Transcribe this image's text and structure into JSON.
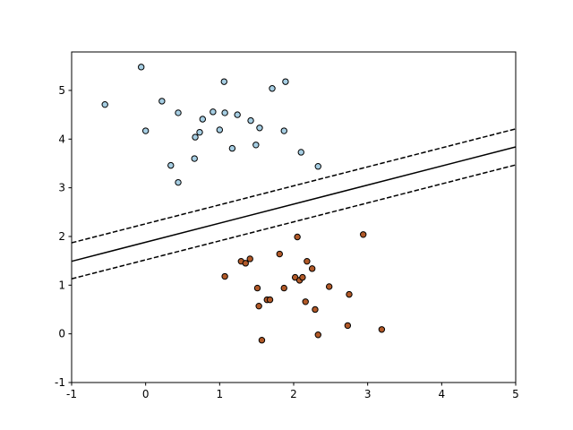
{
  "chart_data": {
    "type": "scatter",
    "xlim": [
      -1,
      5
    ],
    "ylim": [
      -1,
      5.79
    ],
    "xticks": [
      -1,
      0,
      1,
      2,
      3,
      4,
      5
    ],
    "yticks": [
      -1,
      0,
      1,
      2,
      3,
      4,
      5
    ],
    "series": [
      {
        "color": "#a6cee3",
        "x": [
          -0.55,
          -0.06,
          0.0,
          0.22,
          0.44,
          0.34,
          0.44,
          0.67,
          0.73,
          0.77,
          0.66,
          0.91,
          1.0,
          1.06,
          1.07,
          1.17,
          1.24,
          1.42,
          1.49,
          1.54,
          1.71,
          1.87,
          1.89,
          2.1,
          2.33
        ],
        "values": [
          4.71,
          5.48,
          4.17,
          4.78,
          4.54,
          3.46,
          3.11,
          4.04,
          4.14,
          4.41,
          3.6,
          4.56,
          4.19,
          5.18,
          4.54,
          3.81,
          4.5,
          4.38,
          3.88,
          4.23,
          5.04,
          4.17,
          5.18,
          3.73,
          3.44
        ]
      },
      {
        "color": "#b15928",
        "x": [
          1.07,
          1.29,
          1.35,
          1.41,
          1.51,
          1.53,
          1.57,
          1.64,
          1.68,
          1.81,
          1.87,
          2.02,
          2.05,
          2.08,
          2.12,
          2.16,
          2.18,
          2.25,
          2.29,
          2.33,
          2.48,
          2.73,
          2.75,
          2.94,
          3.19
        ],
        "values": [
          1.18,
          1.49,
          1.45,
          1.54,
          0.94,
          0.57,
          -0.13,
          0.7,
          0.7,
          1.64,
          0.94,
          1.16,
          1.99,
          1.1,
          1.16,
          0.66,
          1.49,
          1.34,
          0.5,
          -0.02,
          0.97,
          0.17,
          0.81,
          2.04,
          0.09
        ]
      }
    ],
    "lines": [
      {
        "x": [
          -1,
          5
        ],
        "values": [
          1.87,
          4.21
        ],
        "style": "dashed",
        "color": "#000000"
      },
      {
        "x": [
          -1,
          5
        ],
        "values": [
          1.49,
          3.84
        ],
        "style": "solid",
        "color": "#000000"
      },
      {
        "x": [
          -1,
          5
        ],
        "values": [
          1.13,
          3.47
        ],
        "style": "dashed",
        "color": "#000000"
      }
    ]
  }
}
